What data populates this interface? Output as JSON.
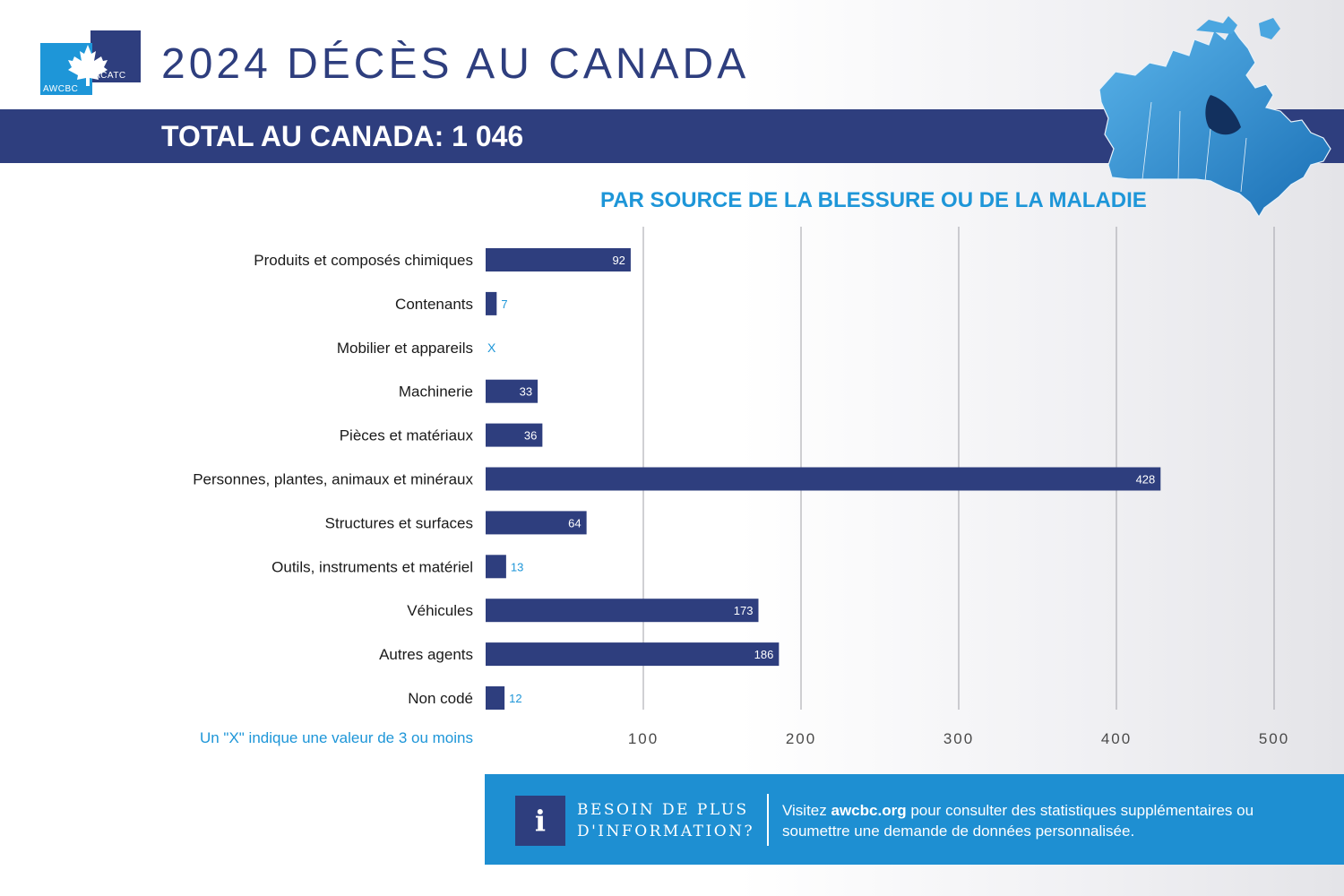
{
  "header": {
    "title": "2024 DÉCÈS AU CANADA",
    "total_banner": "TOTAL AU CANADA: 1 046",
    "logo": {
      "text_left": "AWCBC",
      "text_right": "ACATC"
    }
  },
  "colors": {
    "navy": "#2e3e7e",
    "blue": "#1e96d8",
    "white": "#ffffff"
  },
  "chart_data": {
    "type": "bar",
    "orientation": "horizontal",
    "title": "PAR SOURCE DE LA BLESSURE OU DE LA MALADIE",
    "categories": [
      "Produits et composés chimiques",
      "Contenants",
      "Mobilier et appareils",
      "Machinerie",
      "Pièces et matériaux",
      "Personnes, plantes, animaux et minéraux",
      "Structures et surfaces",
      "Outils, instruments et matériel",
      "Véhicules",
      "Autres agents",
      "Non codé"
    ],
    "values": [
      92,
      7,
      null,
      33,
      36,
      428,
      64,
      13,
      173,
      186,
      12
    ],
    "value_labels": [
      "92",
      "7",
      "X",
      "33",
      "36",
      "428",
      "64",
      "13",
      "173",
      "186",
      "12"
    ],
    "xticks": [
      100,
      200,
      300,
      400,
      500
    ],
    "xlim": [
      0,
      500
    ],
    "grid": true,
    "xlabel": "",
    "ylabel": ""
  },
  "footnote": "Un \"X\" indique une valeur de 3 ou moins",
  "info_box": {
    "heading_line1": "BESOIN DE PLUS",
    "heading_line2": "D'INFORMATION?",
    "text_before": "Visitez ",
    "link": "awcbc.org",
    "text_after": " pour consulter des statistiques supplémentaires ou soumettre une demande de données personnalisée.",
    "icon": "info-icon"
  }
}
